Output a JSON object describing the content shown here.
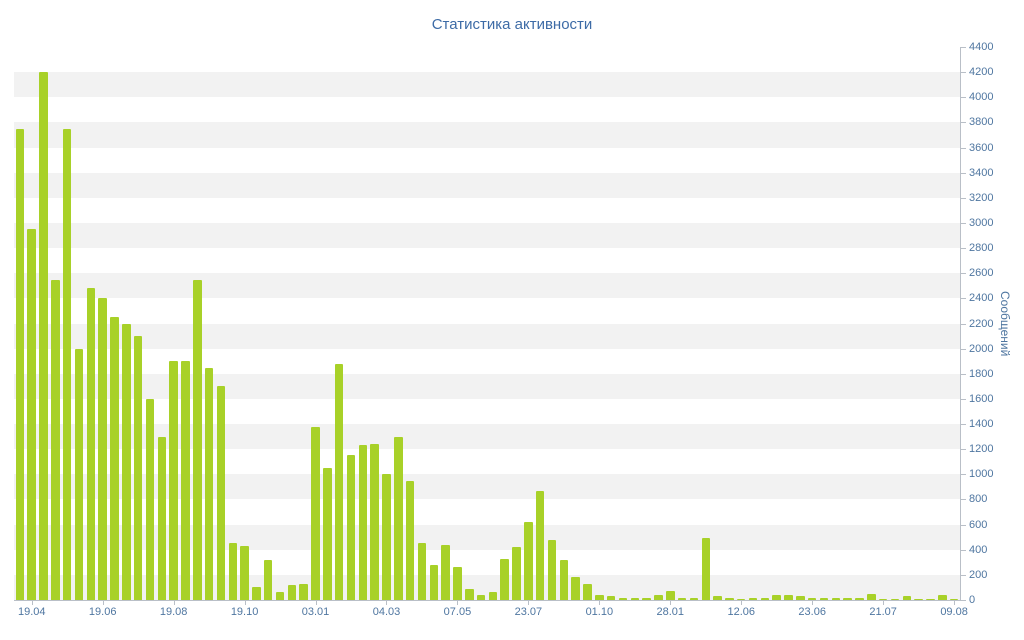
{
  "chart_data": {
    "type": "bar",
    "title": "Статистика активности",
    "ylabel": "Сообщений",
    "ylim": [
      0,
      4400
    ],
    "ytick_step": 200,
    "bar_color": "#a8d128",
    "stripe_colors": [
      "#ffffff",
      "#f2f2f2"
    ],
    "grid": "striped-bands",
    "legend": "none",
    "values": [
      3750,
      2950,
      4200,
      2550,
      3750,
      2000,
      2480,
      2400,
      2250,
      2200,
      2100,
      1600,
      1300,
      1900,
      1900,
      2550,
      1850,
      1700,
      450,
      430,
      100,
      320,
      60,
      120,
      130,
      1380,
      1050,
      1880,
      1150,
      1230,
      1240,
      1000,
      1300,
      950,
      450,
      280,
      440,
      260,
      90,
      40,
      60,
      330,
      420,
      620,
      870,
      480,
      320,
      180,
      130,
      40,
      30,
      20,
      20,
      20,
      40,
      70,
      20,
      20,
      490,
      30,
      20,
      10,
      20,
      20,
      40,
      40,
      30,
      20,
      20,
      20,
      20,
      20,
      50,
      10,
      10,
      30,
      10,
      10,
      40,
      10
    ],
    "x_tick_labels": [
      "19.04",
      "19.06",
      "19.08",
      "19.10",
      "03.01",
      "04.03",
      "07.05",
      "23.07",
      "01.10",
      "28.01",
      "12.06",
      "23.06",
      "21.07",
      "09.08"
    ],
    "x_tick_bar_indices": [
      1,
      7,
      13,
      19,
      25,
      31,
      37,
      43,
      49,
      55,
      61,
      67,
      73,
      79
    ]
  }
}
